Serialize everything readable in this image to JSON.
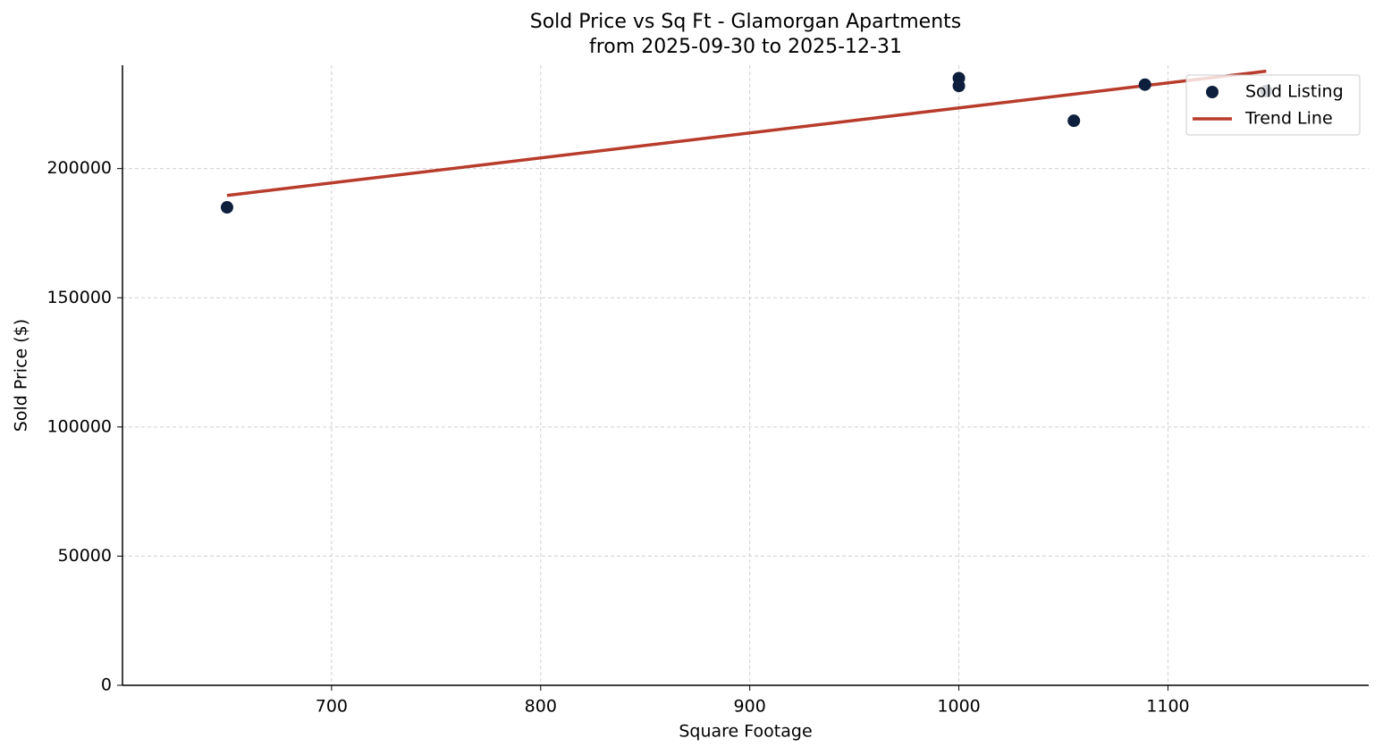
{
  "chart_data": {
    "type": "scatter",
    "title": "Sold Price vs Sq Ft - Glamorgan Apartments",
    "subtitle": "from 2025-09-30 to 2025-12-31",
    "xlabel": "Square Footage",
    "ylabel": "Sold Price ($)",
    "xlim": [
      600,
      1196
    ],
    "xticks": [
      700,
      800,
      900,
      1000,
      1100
    ],
    "ylim": [
      0,
      240000
    ],
    "yticks": [
      0,
      50000,
      100000,
      150000,
      200000
    ],
    "grid": true,
    "legend": "upper right",
    "series": [
      {
        "name": "Sold Listing",
        "type": "scatter",
        "color": "#0d1f3c",
        "x": [
          650,
          1000,
          1000,
          1055,
          1089,
          1147
        ],
        "values": [
          185000,
          235000,
          232000,
          218500,
          232500,
          230000
        ]
      },
      {
        "name": "Trend Line",
        "type": "line",
        "color": "#b83c2c",
        "x": [
          650,
          1147
        ],
        "values": [
          189600,
          237700
        ]
      }
    ]
  }
}
